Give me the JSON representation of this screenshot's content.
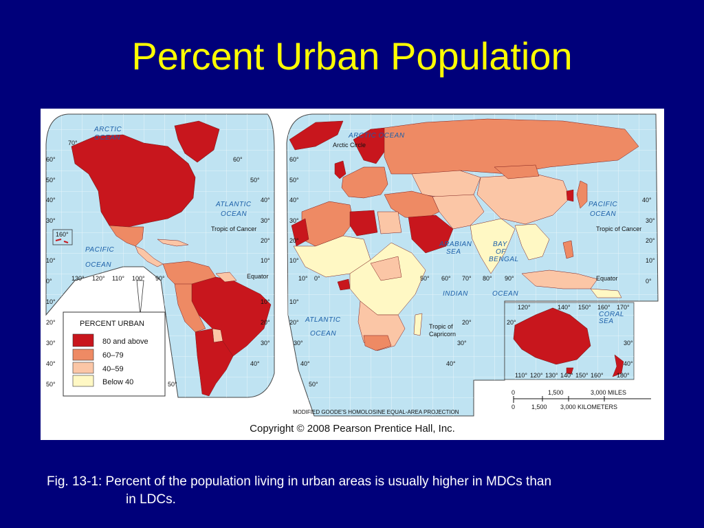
{
  "title": "Percent Urban Population",
  "colors": {
    "background": "#00007a",
    "title": "#ffff00",
    "water": "#bfe3f2",
    "cat_80_above": "#c8161d",
    "cat_60_79": "#ee8a64",
    "cat_40_59": "#fbc6a6",
    "cat_below_40": "#fff8c4"
  },
  "legend": {
    "title": "PERCENT URBAN",
    "items": [
      {
        "label": "80 and above",
        "color": "#c8161d"
      },
      {
        "label": "60–79",
        "color": "#ee8a64"
      },
      {
        "label": "40–59",
        "color": "#fbc6a6"
      },
      {
        "label": "Below 40",
        "color": "#fff8c4"
      }
    ]
  },
  "oceans": {
    "arctic_w_1": "ARCTIC",
    "arctic_w_2": "OCEAN",
    "atlantic_n_1": "ATLANTIC",
    "atlantic_n_2": "OCEAN",
    "pacific_e_1": "PACIFIC",
    "pacific_e_2": "OCEAN",
    "arctic_e": "ARCTIC OCEAN",
    "pacific_w_1": "PACIFIC",
    "pacific_w_2": "OCEAN",
    "arabian_1": "ARABIAN",
    "arabian_2": "SEA",
    "bengal_1": "BAY",
    "bengal_2": "OF",
    "bengal_3": "BENGAL",
    "atlantic_s_1": "ATLANTIC",
    "atlantic_s_2": "OCEAN",
    "indian_1": "INDIAN",
    "indian_2": "OCEAN",
    "coral_1": "CORAL",
    "coral_2": "SEA"
  },
  "lines": {
    "arctic_circle": "Arctic Circle",
    "tropic_cancer_w": "Tropic of Cancer",
    "tropic_cancer_e": "Tropic of Cancer",
    "equator_w": "Equator",
    "equator_e": "Equator",
    "tropic_capricorn_1": "Tropic of",
    "tropic_capricorn_2": "Capricorn"
  },
  "degrees": {
    "d70": "70°",
    "d60": "60°",
    "d50": "50°",
    "d40": "40°",
    "d30": "30°",
    "d20": "20°",
    "d10": "10°",
    "d0": "0°",
    "d130": "130°",
    "d120": "120°",
    "d110": "110°",
    "d100": "100°",
    "d90": "90°",
    "d80": "80°",
    "d140": "140°",
    "d150": "150°",
    "d160": "160°",
    "d170": "170°",
    "d180": "180°",
    "inset_label": "160°"
  },
  "scale": {
    "miles_0": "0",
    "miles_1500": "1,500",
    "miles_3000": "3,000 MILES",
    "km_0": "0",
    "km_1500": "1,500",
    "km_3000": "3,000 KILOMETERS"
  },
  "projection": "MODIFIED GOODE'S HOMOLOSINE EQUAL-AREA PROJECTION",
  "copyright": "Copyright © 2008 Pearson Prentice Hall, Inc.",
  "caption_line1": "Fig. 13-1: Percent of the population living in urban areas is usually higher in MDCs than",
  "caption_line2": "in LDCs."
}
